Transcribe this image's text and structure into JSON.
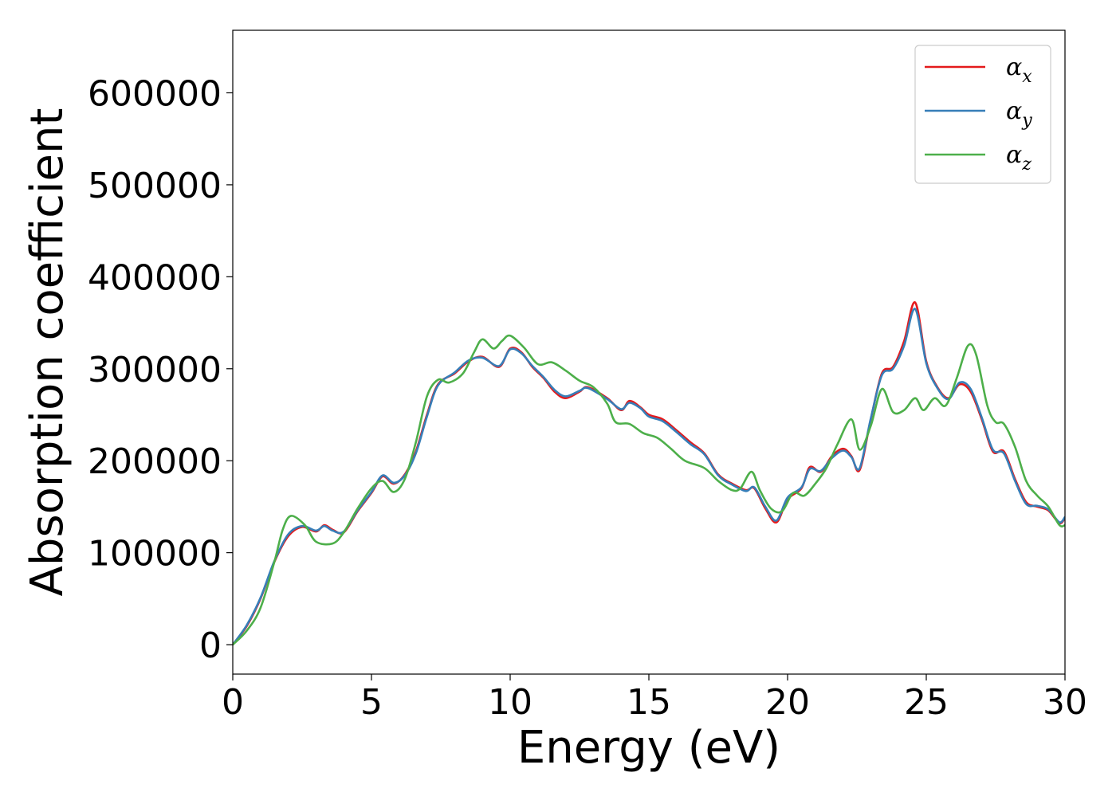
{
  "chart_data": {
    "type": "line",
    "xlabel": "Energy (eV)",
    "ylabel": "Absorption coefficient",
    "xlim": [
      0,
      30
    ],
    "ylim": [
      -32000,
      668000
    ],
    "x_ticks": [
      0,
      5,
      10,
      15,
      20,
      25,
      30
    ],
    "y_ticks": [
      0,
      100000,
      200000,
      300000,
      400000,
      500000,
      600000
    ],
    "grid": false,
    "legend_position": "top-right",
    "series": [
      {
        "name": "αx",
        "symbol": "α",
        "subscript": "x",
        "color": "#e41a1c",
        "points": [
          [
            0,
            0
          ],
          [
            0.5,
            20000
          ],
          [
            1,
            50000
          ],
          [
            1.5,
            90000
          ],
          [
            2,
            118000
          ],
          [
            2.5,
            128000
          ],
          [
            3,
            123000
          ],
          [
            3.3,
            130000
          ],
          [
            3.6,
            125000
          ],
          [
            4,
            122000
          ],
          [
            4.5,
            145000
          ],
          [
            5,
            165000
          ],
          [
            5.4,
            183000
          ],
          [
            5.8,
            175000
          ],
          [
            6.2,
            185000
          ],
          [
            6.6,
            210000
          ],
          [
            7,
            250000
          ],
          [
            7.4,
            283000
          ],
          [
            8,
            295000
          ],
          [
            8.5,
            308000
          ],
          [
            9,
            313000
          ],
          [
            9.6,
            302000
          ],
          [
            10,
            322000
          ],
          [
            10.4,
            318000
          ],
          [
            10.8,
            302000
          ],
          [
            11.2,
            290000
          ],
          [
            11.6,
            275000
          ],
          [
            12,
            268000
          ],
          [
            12.5,
            275000
          ],
          [
            12.8,
            280000
          ],
          [
            13.5,
            268000
          ],
          [
            14,
            255000
          ],
          [
            14.3,
            265000
          ],
          [
            14.7,
            258000
          ],
          [
            15,
            250000
          ],
          [
            15.5,
            245000
          ],
          [
            16,
            233000
          ],
          [
            16.5,
            220000
          ],
          [
            17,
            208000
          ],
          [
            17.5,
            185000
          ],
          [
            18,
            175000
          ],
          [
            18.5,
            168000
          ],
          [
            18.8,
            170000
          ],
          [
            19.2,
            148000
          ],
          [
            19.6,
            133000
          ],
          [
            20,
            158000
          ],
          [
            20.5,
            170000
          ],
          [
            20.8,
            193000
          ],
          [
            21.2,
            188000
          ],
          [
            21.6,
            205000
          ],
          [
            22,
            213000
          ],
          [
            22.3,
            205000
          ],
          [
            22.6,
            190000
          ],
          [
            23,
            245000
          ],
          [
            23.4,
            295000
          ],
          [
            23.8,
            302000
          ],
          [
            24.2,
            330000
          ],
          [
            24.6,
            372000
          ],
          [
            25,
            308000
          ],
          [
            25.4,
            280000
          ],
          [
            25.8,
            268000
          ],
          [
            26.2,
            283000
          ],
          [
            26.6,
            275000
          ],
          [
            27,
            245000
          ],
          [
            27.4,
            210000
          ],
          [
            27.8,
            210000
          ],
          [
            28.2,
            180000
          ],
          [
            28.6,
            155000
          ],
          [
            29,
            150000
          ],
          [
            29.4,
            146000
          ],
          [
            29.8,
            132000
          ],
          [
            30,
            138000
          ]
        ]
      },
      {
        "name": "αy",
        "symbol": "α",
        "subscript": "y",
        "color": "#377eb8",
        "points": [
          [
            0,
            0
          ],
          [
            0.5,
            21000
          ],
          [
            1,
            51000
          ],
          [
            1.5,
            91000
          ],
          [
            2,
            120000
          ],
          [
            2.5,
            129000
          ],
          [
            3,
            124000
          ],
          [
            3.3,
            129000
          ],
          [
            3.6,
            124000
          ],
          [
            4,
            123000
          ],
          [
            4.5,
            146000
          ],
          [
            5,
            166000
          ],
          [
            5.4,
            184000
          ],
          [
            5.8,
            176000
          ],
          [
            6.2,
            184000
          ],
          [
            6.6,
            208000
          ],
          [
            7,
            248000
          ],
          [
            7.4,
            282000
          ],
          [
            8,
            296000
          ],
          [
            8.5,
            309000
          ],
          [
            9,
            312000
          ],
          [
            9.6,
            303000
          ],
          [
            10,
            321000
          ],
          [
            10.4,
            317000
          ],
          [
            10.8,
            303000
          ],
          [
            11.2,
            291000
          ],
          [
            11.6,
            277000
          ],
          [
            12,
            270000
          ],
          [
            12.5,
            276000
          ],
          [
            12.8,
            279000
          ],
          [
            13.5,
            267000
          ],
          [
            14,
            256000
          ],
          [
            14.3,
            263000
          ],
          [
            14.7,
            257000
          ],
          [
            15,
            248000
          ],
          [
            15.5,
            243000
          ],
          [
            16,
            231000
          ],
          [
            16.5,
            218000
          ],
          [
            17,
            207000
          ],
          [
            17.5,
            184000
          ],
          [
            18,
            174000
          ],
          [
            18.5,
            167000
          ],
          [
            18.8,
            171000
          ],
          [
            19.2,
            150000
          ],
          [
            19.6,
            135000
          ],
          [
            20,
            160000
          ],
          [
            20.5,
            171000
          ],
          [
            20.8,
            191000
          ],
          [
            21.2,
            189000
          ],
          [
            21.6,
            203000
          ],
          [
            22,
            211000
          ],
          [
            22.3,
            204000
          ],
          [
            22.6,
            192000
          ],
          [
            23,
            246000
          ],
          [
            23.4,
            293000
          ],
          [
            23.8,
            300000
          ],
          [
            24.2,
            325000
          ],
          [
            24.6,
            365000
          ],
          [
            25,
            306000
          ],
          [
            25.4,
            279000
          ],
          [
            25.8,
            267000
          ],
          [
            26.2,
            285000
          ],
          [
            26.6,
            278000
          ],
          [
            27,
            247000
          ],
          [
            27.4,
            212000
          ],
          [
            27.8,
            208000
          ],
          [
            28.2,
            178000
          ],
          [
            28.6,
            153000
          ],
          [
            29,
            151000
          ],
          [
            29.4,
            147000
          ],
          [
            29.8,
            133000
          ],
          [
            30,
            139000
          ]
        ]
      },
      {
        "name": "αz",
        "symbol": "α",
        "subscript": "z",
        "color": "#4daf4a",
        "points": [
          [
            0,
            0
          ],
          [
            0.5,
            15000
          ],
          [
            1,
            40000
          ],
          [
            1.5,
            90000
          ],
          [
            1.8,
            125000
          ],
          [
            2.1,
            140000
          ],
          [
            2.6,
            130000
          ],
          [
            3,
            112000
          ],
          [
            3.6,
            110000
          ],
          [
            4,
            122000
          ],
          [
            4.5,
            148000
          ],
          [
            5,
            170000
          ],
          [
            5.4,
            178000
          ],
          [
            5.8,
            166000
          ],
          [
            6.2,
            180000
          ],
          [
            6.6,
            220000
          ],
          [
            7,
            270000
          ],
          [
            7.4,
            288000
          ],
          [
            7.8,
            285000
          ],
          [
            8.3,
            295000
          ],
          [
            8.7,
            318000
          ],
          [
            9,
            332000
          ],
          [
            9.4,
            322000
          ],
          [
            9.7,
            330000
          ],
          [
            10,
            336000
          ],
          [
            10.5,
            323000
          ],
          [
            11,
            305000
          ],
          [
            11.5,
            307000
          ],
          [
            12,
            298000
          ],
          [
            12.5,
            287000
          ],
          [
            13,
            280000
          ],
          [
            13.5,
            262000
          ],
          [
            13.8,
            242000
          ],
          [
            14.3,
            240000
          ],
          [
            14.8,
            230000
          ],
          [
            15.3,
            225000
          ],
          [
            15.8,
            213000
          ],
          [
            16.3,
            200000
          ],
          [
            17,
            192000
          ],
          [
            17.5,
            178000
          ],
          [
            18,
            168000
          ],
          [
            18.3,
            170000
          ],
          [
            18.7,
            188000
          ],
          [
            19,
            168000
          ],
          [
            19.4,
            148000
          ],
          [
            19.8,
            145000
          ],
          [
            20.2,
            165000
          ],
          [
            20.6,
            162000
          ],
          [
            21,
            175000
          ],
          [
            21.4,
            192000
          ],
          [
            21.8,
            218000
          ],
          [
            22.3,
            245000
          ],
          [
            22.6,
            212000
          ],
          [
            23,
            238000
          ],
          [
            23.4,
            278000
          ],
          [
            23.8,
            253000
          ],
          [
            24.2,
            255000
          ],
          [
            24.6,
            268000
          ],
          [
            24.9,
            255000
          ],
          [
            25.3,
            268000
          ],
          [
            25.7,
            260000
          ],
          [
            26.1,
            290000
          ],
          [
            26.5,
            325000
          ],
          [
            26.8,
            315000
          ],
          [
            27.2,
            260000
          ],
          [
            27.5,
            242000
          ],
          [
            27.8,
            240000
          ],
          [
            28.2,
            215000
          ],
          [
            28.6,
            178000
          ],
          [
            29,
            162000
          ],
          [
            29.4,
            150000
          ],
          [
            29.8,
            130000
          ],
          [
            30,
            130000
          ]
        ]
      }
    ]
  }
}
